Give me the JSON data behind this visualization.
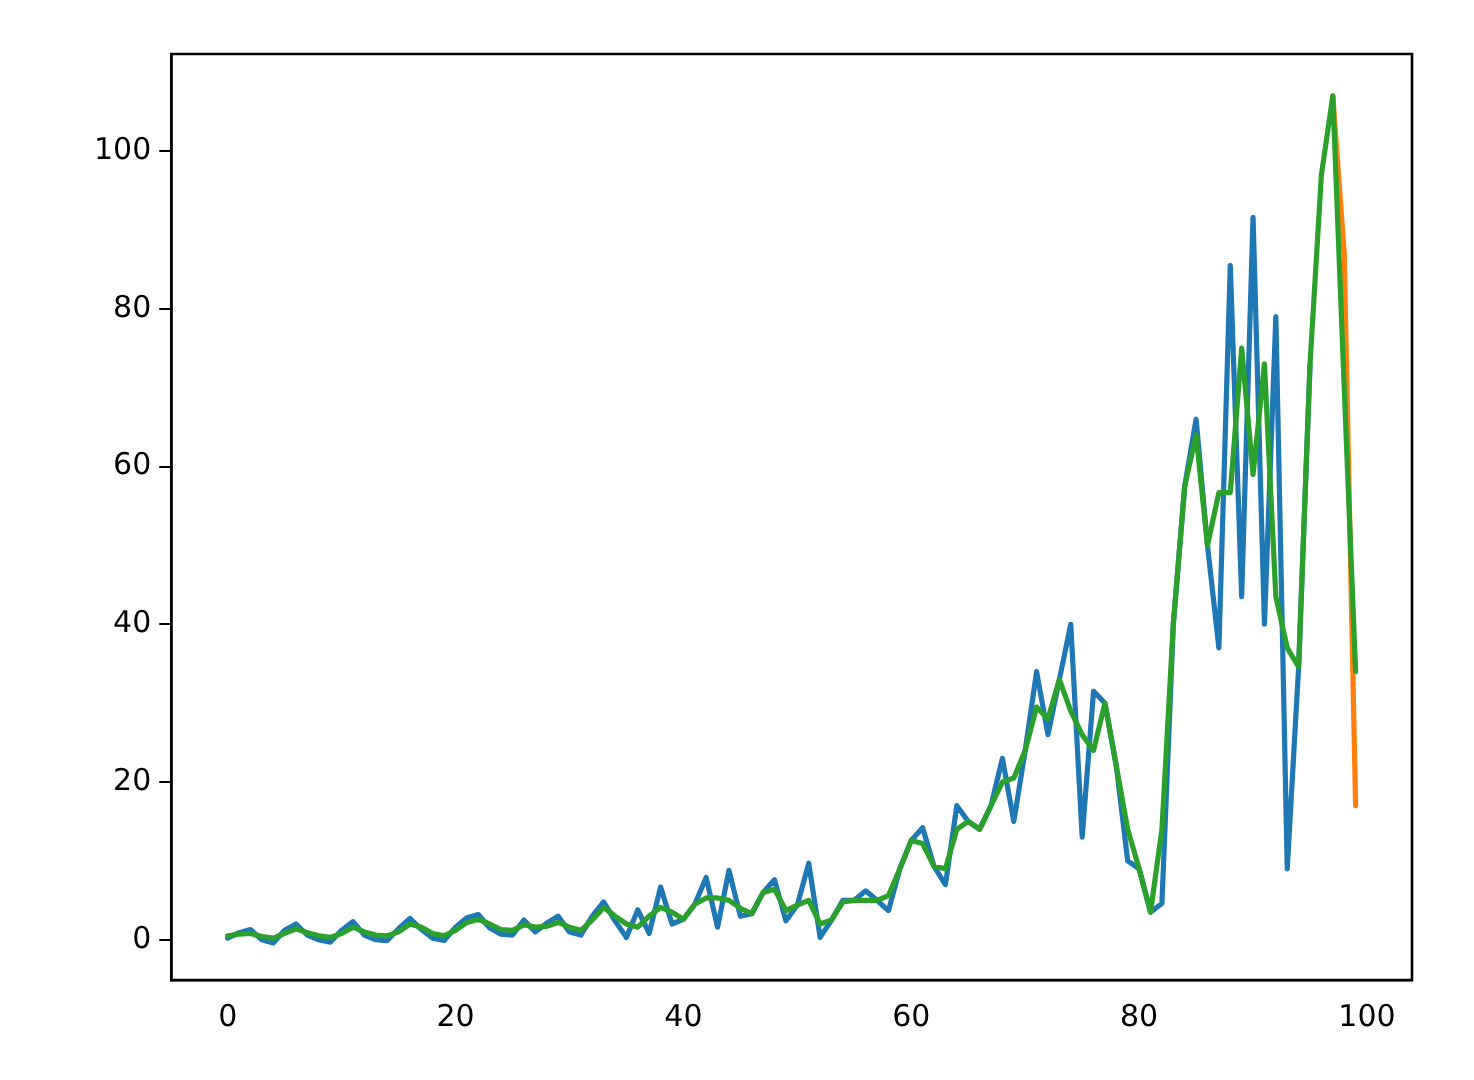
{
  "chart_data": {
    "type": "line",
    "x": [
      0,
      1,
      2,
      3,
      4,
      5,
      6,
      7,
      8,
      9,
      10,
      11,
      12,
      13,
      14,
      15,
      16,
      17,
      18,
      19,
      20,
      21,
      22,
      23,
      24,
      25,
      26,
      27,
      28,
      29,
      30,
      31,
      32,
      33,
      34,
      35,
      36,
      37,
      38,
      39,
      40,
      41,
      42,
      43,
      44,
      45,
      46,
      47,
      48,
      49,
      50,
      51,
      52,
      53,
      54,
      55,
      56,
      57,
      58,
      59,
      60,
      61,
      62,
      63,
      64,
      65,
      66,
      67,
      68,
      69,
      70,
      71,
      72,
      73,
      74,
      75,
      76,
      77,
      78,
      79,
      80,
      81,
      82,
      83,
      84,
      85,
      86,
      87,
      88,
      89,
      90,
      91,
      92,
      93,
      94,
      95,
      96,
      97,
      98,
      99
    ],
    "series": [
      {
        "color": "#1f77b4",
        "values": [
          0.2,
          0.9,
          1.3,
          0.0,
          -0.4,
          1.2,
          2.0,
          0.6,
          0.0,
          -0.3,
          1.2,
          2.3,
          0.6,
          0.0,
          -0.1,
          1.4,
          2.7,
          1.3,
          0.2,
          -0.1,
          1.6,
          2.8,
          3.2,
          1.5,
          0.7,
          0.6,
          2.5,
          1.0,
          2.1,
          3.0,
          1.0,
          0.6,
          3.0,
          4.8,
          2.4,
          0.3,
          3.8,
          0.8,
          6.7,
          2.0,
          2.6,
          4.5,
          7.9,
          1.6,
          8.8,
          3.0,
          3.3,
          6.0,
          7.6,
          2.4,
          4.4,
          9.7,
          0.3,
          2.5,
          5.0,
          5.0,
          6.2,
          5.0,
          3.7,
          9.0,
          12.6,
          14.2,
          9.3,
          7.0,
          17.0,
          15.0,
          14.0,
          17.0,
          23.0,
          15.0,
          24.0,
          34.0,
          26.0,
          33.0,
          40.0,
          13.0,
          31.5,
          30.0,
          22.0,
          10.0,
          9.0,
          3.5,
          4.6,
          40.0,
          57.5,
          66.0,
          50.0,
          37.0,
          85.5,
          43.5,
          91.6,
          40.0,
          79.0,
          9.0,
          34.6,
          73.0,
          null,
          null,
          null,
          null
        ]
      },
      {
        "color": "#ff7f0e",
        "values": [
          null,
          null,
          null,
          null,
          null,
          null,
          null,
          null,
          null,
          null,
          null,
          null,
          null,
          null,
          null,
          null,
          null,
          null,
          null,
          null,
          null,
          null,
          null,
          null,
          null,
          null,
          null,
          null,
          null,
          null,
          null,
          null,
          null,
          null,
          null,
          null,
          null,
          null,
          null,
          null,
          null,
          null,
          null,
          null,
          null,
          null,
          null,
          null,
          null,
          null,
          null,
          null,
          null,
          null,
          null,
          null,
          null,
          null,
          null,
          null,
          null,
          null,
          null,
          null,
          null,
          null,
          null,
          null,
          null,
          null,
          null,
          null,
          null,
          null,
          null,
          null,
          null,
          null,
          null,
          null,
          null,
          null,
          null,
          null,
          null,
          null,
          null,
          null,
          null,
          null,
          null,
          null,
          null,
          null,
          null,
          null,
          null,
          107.0,
          87.0,
          17.0
        ]
      },
      {
        "color": "#2ca02c",
        "values": [
          0.5,
          0.7,
          0.8,
          0.4,
          0.2,
          0.8,
          1.4,
          0.9,
          0.5,
          0.3,
          0.8,
          1.6,
          1.0,
          0.6,
          0.5,
          1.0,
          2.0,
          1.6,
          0.8,
          0.5,
          1.2,
          2.2,
          2.6,
          2.0,
          1.3,
          1.2,
          1.9,
          1.6,
          1.7,
          2.2,
          1.6,
          1.2,
          2.5,
          4.1,
          3.0,
          2.0,
          1.6,
          3.0,
          4.1,
          3.5,
          2.6,
          4.5,
          5.3,
          5.3,
          5.0,
          4.0,
          3.3,
          6.0,
          6.4,
          3.7,
          4.4,
          5.0,
          2.0,
          2.5,
          4.8,
          5.0,
          5.0,
          5.0,
          5.6,
          9.0,
          12.6,
          12.2,
          9.3,
          9.0,
          14.0,
          15.0,
          14.0,
          17.0,
          20.0,
          20.5,
          24.0,
          29.5,
          28.0,
          33.0,
          29.0,
          26.0,
          24.0,
          30.0,
          22.0,
          14.0,
          9.0,
          3.5,
          14.0,
          40.0,
          57.5,
          64.0,
          50.0,
          56.7,
          56.7,
          75.0,
          59.0,
          73.0,
          43.5,
          37.0,
          34.6,
          73.0,
          97.0,
          107.0,
          70.0,
          34.0
        ]
      }
    ],
    "xlim": [
      -4.95,
      103.95
    ],
    "ylim": [
      -5.1,
      112.3
    ],
    "xticks": [
      0,
      20,
      40,
      60,
      80,
      100
    ],
    "yticks": [
      0,
      20,
      40,
      60,
      80,
      100
    ],
    "grid": false,
    "legend": false
  }
}
